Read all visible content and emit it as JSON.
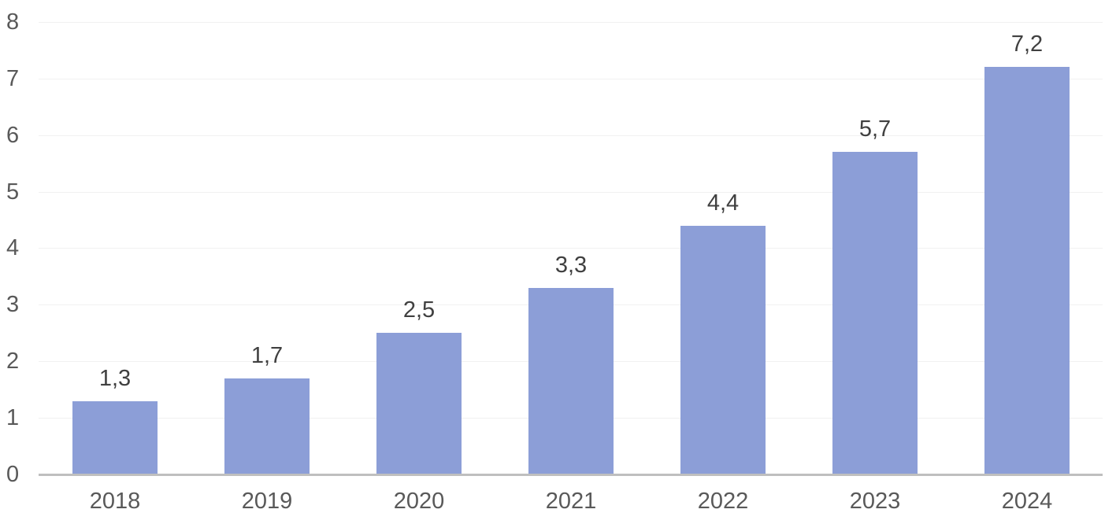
{
  "chart_data": {
    "type": "bar",
    "title": "",
    "xlabel": "",
    "ylabel": "",
    "categories": [
      "2018",
      "2019",
      "2020",
      "2021",
      "2022",
      "2023",
      "2024"
    ],
    "values": [
      1.3,
      1.7,
      2.5,
      3.3,
      4.4,
      5.7,
      7.2
    ],
    "value_labels": [
      "1,3",
      "1,7",
      "2,5",
      "3,3",
      "4,4",
      "5,7",
      "7,2"
    ],
    "ylim": [
      0,
      8
    ],
    "yticks": [
      0,
      1,
      2,
      3,
      4,
      5,
      6,
      7,
      8
    ],
    "grid": true,
    "legend": false,
    "colors": {
      "bar_fill": "#8C9ED7",
      "gridline": "#F1F1F1",
      "axis_line": "#BFBFBF",
      "tick_label": "#595959",
      "data_label": "#404040"
    }
  }
}
